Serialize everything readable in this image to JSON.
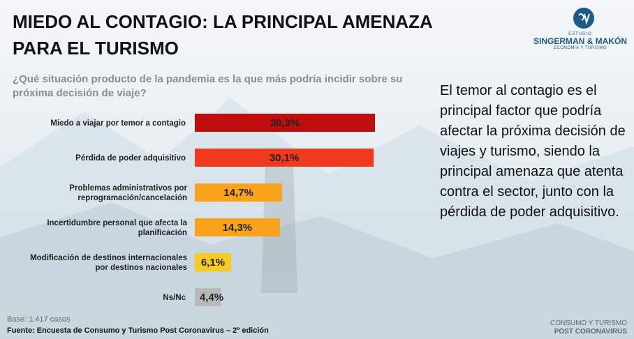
{
  "title": "MIEDO AL CONTAGIO: LA PRINCIPAL AMENAZA PARA EL TURISMO",
  "logo": {
    "small": "ESTUDIO",
    "name": "SINGERMAN & MAKÓN",
    "sub": "ECONOMÍA Y TURISMO"
  },
  "question": "¿Qué situación producto de la pandemia es la que más podría incidir sobre su próxima decisión de viaje?",
  "side_text": "El temor al contagio es el principal factor que podría afectar la próxima decisión de viajes y turismo, siendo la principal amenaza que atenta contra el sector, junto con la pérdida de poder adquisitivo.",
  "base": "Base: 1.417 casos",
  "source": "Fuente: Encuesta de Consumo y Turismo Post Coronavirus – 2º edición",
  "footer": {
    "line1": "CONSUMO Y TURISMO",
    "line2": "POST CORONAVIRUS"
  },
  "chart_data": {
    "type": "bar",
    "orientation": "horizontal",
    "categories": [
      [
        "Miedo a viajar por temor a contagio"
      ],
      [
        "Pérdida de poder adquisitivo"
      ],
      [
        "Problemas administrativos por",
        "reprogramación/cancelación"
      ],
      [
        "Incertidumbre personal que afecta la",
        "planificación"
      ],
      [
        "Modificación de destinos internacionales",
        "por destinos nacionales"
      ],
      [
        "Ns/Nc"
      ]
    ],
    "values": [
      30.3,
      30.1,
      14.7,
      14.3,
      6.1,
      4.4
    ],
    "value_labels": [
      "30,3%",
      "30,1%",
      "14,7%",
      "14,3%",
      "6,1%",
      "4,4%"
    ],
    "colors": [
      "#c00d0d",
      "#f0391e",
      "#f9a21b",
      "#f9a21b",
      "#f7cc20",
      "#b8b8b8"
    ],
    "unit": "%",
    "grid": false,
    "legend": "none"
  }
}
